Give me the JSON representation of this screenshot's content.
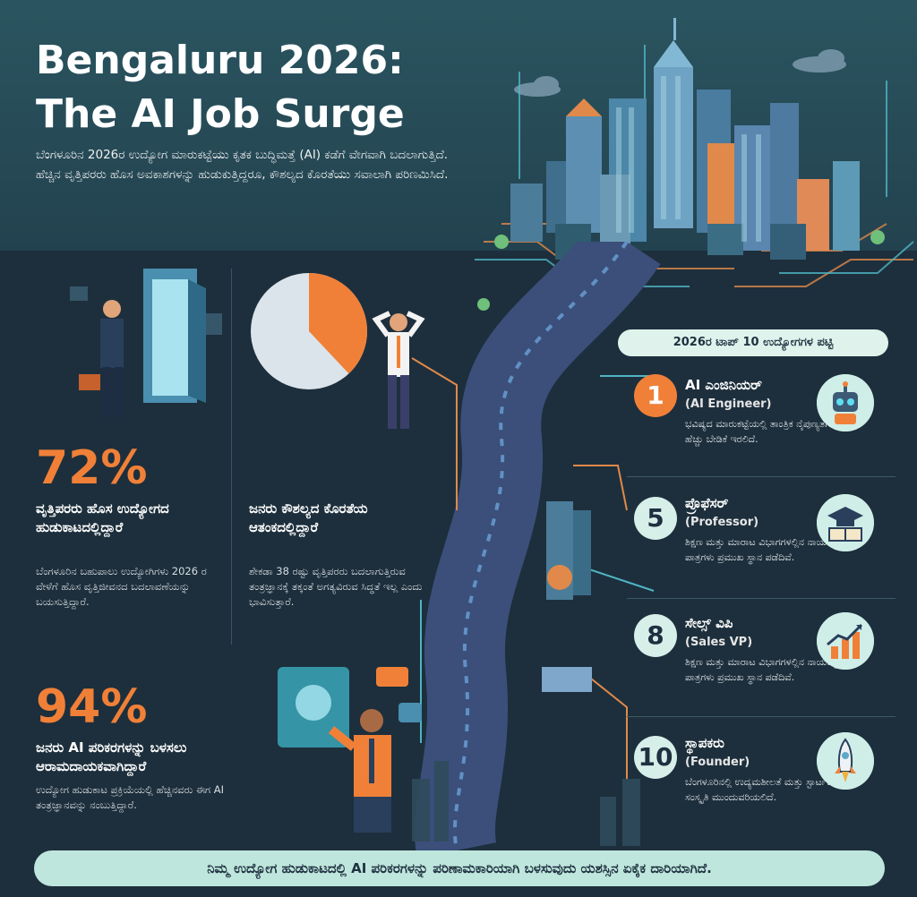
{
  "header": {
    "title_line1": "Bengaluru 2026:",
    "title_line2": "The AI Job Surge",
    "intro": "ಬೆಂಗಳೂರಿನ 2026ರ ಉದ್ಯೋಗ ಮಾರುಕಟ್ಟೆಯು ಕೃತಕ ಬುದ್ಧಿಮತ್ತೆ (AI) ಕಡೆಗೆ ವೇಗವಾಗಿ ಬದಲಾಗುತ್ತಿದೆ. ಹೆಚ್ಚಿನ ವೃತ್ತಿಪರರು ಹೊಸ ಅವಕಾಶಗಳನ್ನು ಹುಡುಕುತ್ತಿದ್ದರೂ, ಕೌಶಲ್ಯದ ಕೊರತೆಯು ಸವಾಲಾಗಿ ಪರಿಣಮಿಸಿದೆ."
  },
  "stats": {
    "s1": {
      "value": "72%",
      "heading": "ವೃತ್ತಿಪರರು ಹೊಸ ಉದ್ಯೋಗದ ಹುಡುಕಾಟದಲ್ಲಿದ್ದಾರೆ",
      "body": "ಬೆಂಗಳೂರಿನ ಬಹುಪಾಲು ಉದ್ಯೋಗಿಗಳು 2026 ರ ವೇಳೆಗೆ ಹೊಸ ವೃತ್ತಿಜೀವನದ ಬದಲಾವಣೆಯನ್ನು ಬಯಸುತ್ತಿದ್ದಾರೆ."
    },
    "s2": {
      "heading": "ಜನರು ಕೌಶಲ್ಯದ ಕೊರತೆಯ ಆತಂಕದಲ್ಲಿದ್ದಾರೆ",
      "body": "ಶೇಕಡಾ 38 ರಷ್ಟು ವೃತ್ತಿಪರರು ಬದಲಾಗುತ್ತಿರುವ ತಂತ್ರಜ್ಞಾನಕ್ಕೆ ತಕ್ಕಂತೆ ಅಗತ್ಯವಿರುವ ಸಿದ್ಧತೆ ಇಲ್ಲ ಎಂದು ಭಾವಿಸುತ್ತಾರೆ.",
      "pie_fraction": 0.38
    },
    "s3": {
      "value": "94%",
      "heading": "ಜನರು AI ಪರಿಕರಗಳನ್ನು ಬಳಸಲು ಆರಾಮದಾಯಕವಾಗಿದ್ದಾರೆ",
      "body": "ಉದ್ಯೋಗ ಹುಡುಕಾಟ ಪ್ರಕ್ರಿಯೆಯಲ್ಲಿ ಹೆಚ್ಚಿನವರು ಈಗ AI ತಂತ್ರಜ್ಞಾನವನ್ನು ನಂಬುತ್ತಿದ್ದಾರೆ."
    }
  },
  "jobs": {
    "list_title": "2026ರ ಟಾಪ್ 10 ಉದ್ಯೋಗಗಳ ಪಟ್ಟಿ",
    "items": [
      {
        "rank": "1",
        "title": "AI ಎಂಜಿನಿಯರ್",
        "en": "(AI Engineer)",
        "desc": "ಭವಿಷ್ಯದ ಮಾರುಕಟ್ಟೆಯಲ್ಲಿ ತಾಂತ್ರಿಕ ನೈಪುಣ್ಯತೆಗೆ ಅತಿ ಹೆಚ್ಚು ಬೇಡಿಕೆ ಇರಲಿದೆ.",
        "icon": "robot-icon"
      },
      {
        "rank": "5",
        "title": "ಪ್ರೊಫೆಸರ್",
        "en": "(Professor)",
        "desc": "ಶಿಕ್ಷಣ ಮತ್ತು ಮಾರಾಟ ವಿಭಾಗಗಳಲ್ಲಿನ ನಾಯಕತ್ವದ ಪಾತ್ರಗಳು ಪ್ರಮುಖ ಸ್ಥಾನ ಪಡೆದಿವೆ.",
        "icon": "graduation-icon"
      },
      {
        "rank": "8",
        "title": "ಸೇಲ್ಸ್ ವಿಪಿ",
        "en": "(Sales VP)",
        "desc": "ಶಿಕ್ಷಣ ಮತ್ತು ಮಾರಾಟ ವಿಭಾಗಗಳಲ್ಲಿನ ನಾಯಕತ್ವದ ಪಾತ್ರಗಳು ಪ್ರಮುಖ ಸ್ಥಾನ ಪಡೆದಿವೆ.",
        "icon": "growth-chart-icon"
      },
      {
        "rank": "10",
        "title": "ಸ್ಥಾಪಕರು",
        "en": "(Founder)",
        "desc": "ಬೆಂಗಳೂರಿನಲ್ಲಿ ಉದ್ಯಮಶೀಲತೆ ಮತ್ತು ಸ್ಟಾರ್ಟಪ್ ಸಂಸ್ಕೃತಿ ಮುಂದುವರಿಯಲಿದೆ.",
        "icon": "rocket-icon"
      }
    ]
  },
  "footer": {
    "text": "ನಿಮ್ಮ ಉದ್ಯೋಗ ಹುಡುಕಾಟದಲ್ಲಿ AI ಪರಿಕರಗಳನ್ನು ಪರಿಣಾಮಕಾರಿಯಾಗಿ ಬಳಸುವುದು ಯಶಸ್ಸಿನ ಏಕೈಕ ದಾರಿಯಾಗಿದೆ."
  },
  "colors": {
    "accent_orange": "#f08038",
    "mint": "#bfe6dc",
    "navy": "#1e3040",
    "teal": "#2a5560"
  }
}
